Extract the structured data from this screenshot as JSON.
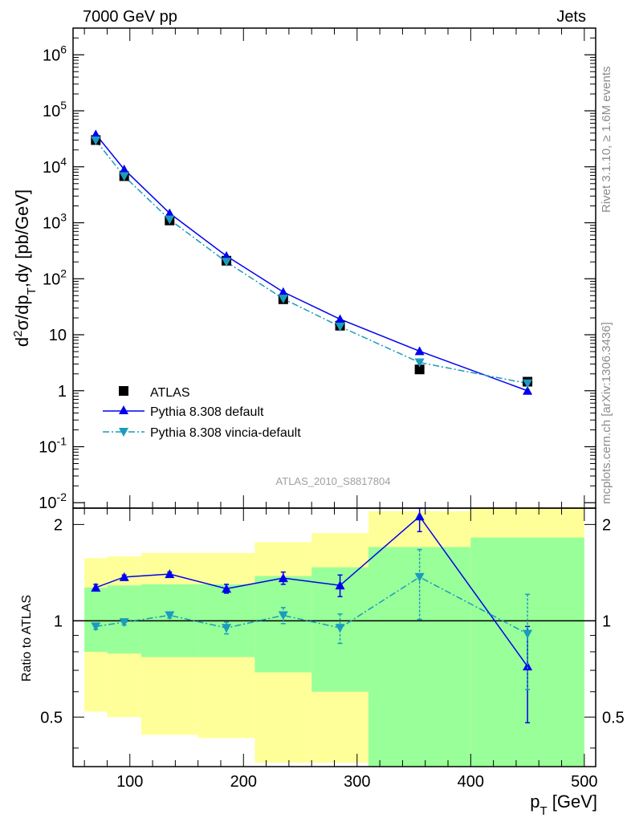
{
  "header": {
    "left": "7000 GeV pp",
    "right": "Jets"
  },
  "side_text": {
    "rivet": "Rivet 3.1.10, ≥ 1.6M events",
    "mcplots": "mcplots.cern.ch [arXiv:1306.3436]"
  },
  "analysis_label": "ATLAS_2010_S8817804",
  "colors": {
    "data": "#000000",
    "default": "#0000ee",
    "vincia": "#1b9bbf",
    "band_outer": "#ffff99",
    "band_inner": "#99ff99"
  },
  "chart_data": [
    {
      "type": "line",
      "panel": "main",
      "y_scale": "log",
      "ylabel": "d²σ/dp_T,dy [pb/GeV]",
      "xlim": [
        50,
        510
      ],
      "ylim": [
        0.008,
        3000000
      ],
      "y_ticks": [
        "10^-2",
        "10^-1",
        "1",
        "10",
        "10^2",
        "10^3",
        "10^4",
        "10^5",
        "10^6"
      ],
      "legend": {
        "placement": "lower-left"
      },
      "x": [
        70,
        95,
        135,
        185,
        235,
        285,
        355,
        450
      ],
      "series": [
        {
          "name": "ATLAS",
          "marker": "square",
          "values": [
            30000,
            6800,
            1100,
            210,
            43,
            14.5,
            2.4,
            1.45
          ]
        },
        {
          "name": "Pythia 8.308 default",
          "marker": "triangle-up",
          "line": "solid",
          "values": [
            38000,
            9000,
            1480,
            255,
            58,
            19,
            5.1,
            1.0
          ]
        },
        {
          "name": "Pythia 8.308 vincia-default",
          "marker": "triangle-down",
          "line": "dashdot",
          "values": [
            29500,
            6800,
            1140,
            200,
            44,
            14,
            3.2,
            1.35
          ]
        }
      ]
    },
    {
      "type": "line",
      "panel": "ratio",
      "ylabel": "Ratio to ATLAS",
      "xlabel": "p_T [GeV]",
      "xlim": [
        50,
        510
      ],
      "ylim": [
        0.35,
        2.25
      ],
      "x_ticks": [
        100,
        200,
        300,
        400,
        500
      ],
      "y_ticks": [
        0.5,
        1,
        2
      ],
      "bins": [
        [
          60,
          80
        ],
        [
          80,
          110
        ],
        [
          110,
          160
        ],
        [
          160,
          210
        ],
        [
          210,
          260
        ],
        [
          260,
          310
        ],
        [
          310,
          400
        ],
        [
          400,
          500
        ]
      ],
      "band_outer": {
        "low": [
          0.52,
          0.5,
          0.44,
          0.43,
          0.36,
          0.36,
          0.35,
          0.35
        ],
        "high": [
          1.57,
          1.59,
          1.63,
          1.63,
          1.76,
          1.88,
          2.2,
          2.25
        ]
      },
      "band_inner": {
        "low": [
          0.8,
          0.79,
          0.77,
          0.77,
          0.69,
          0.6,
          0.35,
          0.35
        ],
        "high": [
          1.27,
          1.29,
          1.3,
          1.3,
          1.38,
          1.47,
          1.7,
          1.82
        ]
      },
      "x": [
        70,
        95,
        135,
        185,
        235,
        285,
        355,
        450
      ],
      "series": [
        {
          "name": "Pythia 8.308 default",
          "values": [
            1.27,
            1.37,
            1.4,
            1.26,
            1.36,
            1.29,
            2.12,
            0.72
          ],
          "err_low": [
            0.03,
            0.02,
            0.02,
            0.04,
            0.06,
            0.1,
            0.22,
            0.24
          ],
          "err_high": [
            0.03,
            0.02,
            0.02,
            0.04,
            0.06,
            0.1,
            0.22,
            0.24
          ]
        },
        {
          "name": "Pythia 8.308 vincia-default",
          "values": [
            0.96,
            0.99,
            1.04,
            0.95,
            1.04,
            0.95,
            1.37,
            0.91
          ],
          "err_low": [
            0.02,
            0.02,
            0.02,
            0.04,
            0.06,
            0.1,
            0.36,
            0.3
          ],
          "err_high": [
            0.02,
            0.02,
            0.02,
            0.04,
            0.06,
            0.1,
            0.3,
            0.3
          ]
        }
      ]
    }
  ]
}
